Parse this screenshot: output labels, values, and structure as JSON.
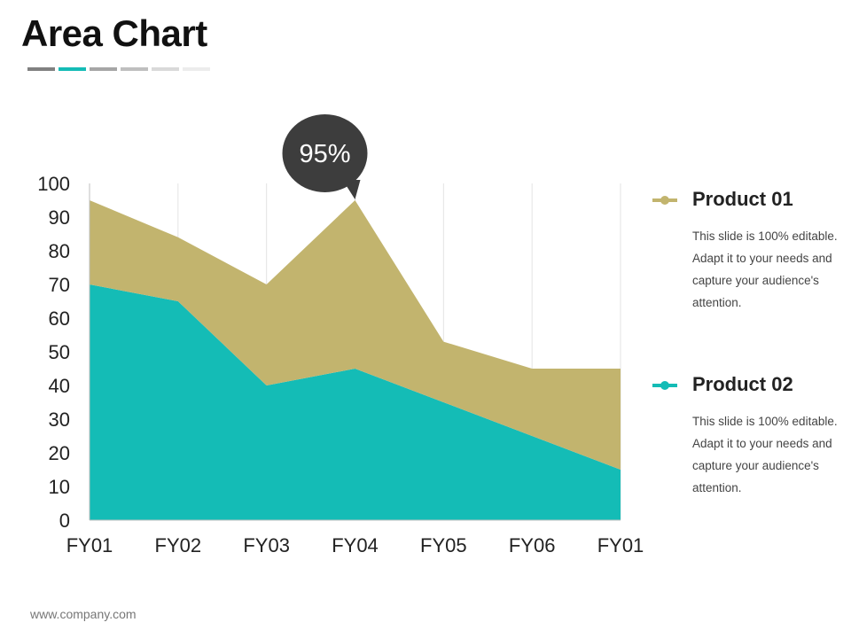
{
  "slide": {
    "title": "Area Chart",
    "title_bar_colors": [
      "#808080",
      "#14bcb6",
      "#a6a6a6",
      "#bfbfbf",
      "#d9d9d9",
      "#ececec"
    ],
    "footer": "www.company.com"
  },
  "chart_data": {
    "type": "area",
    "stacked": true,
    "categories": [
      "FY01",
      "FY02",
      "FY03",
      "FY04",
      "FY05",
      "FY06",
      "FY01"
    ],
    "series": [
      {
        "name": "Product 02",
        "color": "#14bcb6",
        "values": [
          70,
          65,
          40,
          45,
          35,
          25,
          15
        ]
      },
      {
        "name": "Product 01",
        "color": "#c2b46e",
        "values": [
          25,
          19,
          30,
          50,
          18,
          20,
          30
        ]
      }
    ],
    "ylim": [
      0,
      100
    ],
    "yticks": [
      0,
      10,
      20,
      30,
      40,
      50,
      60,
      70,
      80,
      90,
      100
    ],
    "grid": "vertical",
    "callout": {
      "text": "95%",
      "category_index": 3,
      "value": 95
    }
  },
  "legend": [
    {
      "name": "Product 01",
      "color": "#c2b46e",
      "description": "This slide is 100% editable. Adapt it to your needs and capture your audience's attention."
    },
    {
      "name": "Product 02",
      "color": "#14bcb6",
      "description": "This slide is 100% editable. Adapt it to your needs and capture your audience's attention."
    }
  ]
}
